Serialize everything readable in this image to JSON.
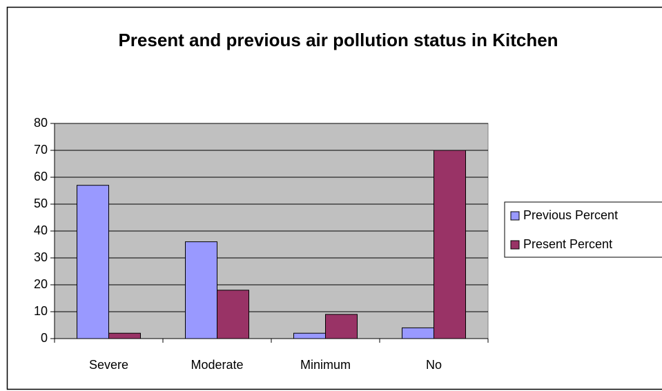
{
  "chart_data": {
    "type": "bar",
    "title": "Present and previous air pollution status in Kitchen",
    "categories": [
      "Severe",
      "Moderate",
      "Minimum",
      "No"
    ],
    "series": [
      {
        "name": "Previous Percent",
        "color": "#9999ff",
        "values": [
          57,
          36,
          2,
          4
        ]
      },
      {
        "name": "Present Percent",
        "color": "#993366",
        "values": [
          2,
          18,
          9,
          70
        ]
      }
    ],
    "ylim": [
      0,
      80
    ],
    "yticks": [
      0,
      10,
      20,
      30,
      40,
      50,
      60,
      70,
      80
    ],
    "grid": true,
    "plot_background": "#c0c0c0",
    "legend": "right"
  }
}
